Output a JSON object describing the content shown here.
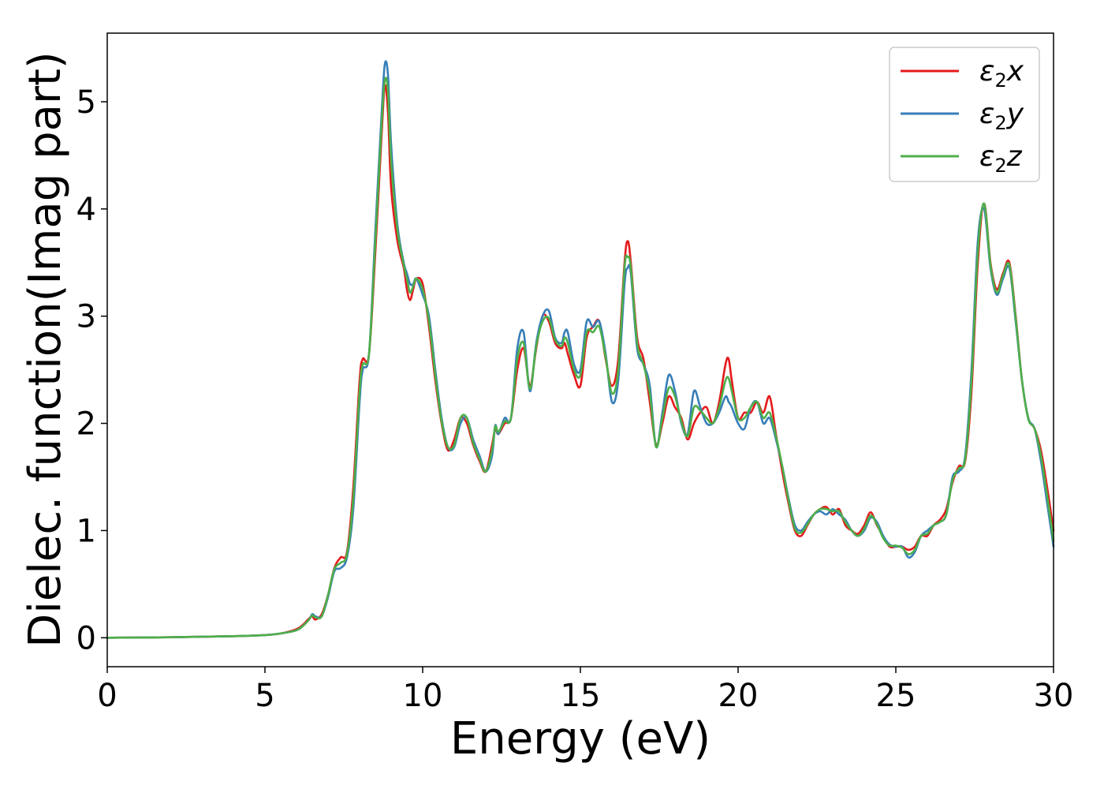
{
  "chart_data": {
    "type": "line",
    "xlabel": "Energy (eV)",
    "ylabel": "Dielec. function(Imag part)",
    "xlim": [
      0,
      30
    ],
    "ylim": [
      -0.27,
      5.64
    ],
    "xticks": [
      0,
      5,
      10,
      15,
      20,
      25,
      30
    ],
    "yticks": [
      0,
      1,
      2,
      3,
      4,
      5
    ],
    "grid": false,
    "legend_position": "top-right",
    "series": [
      {
        "name": "ε2x",
        "legend": {
          "symbol": "ε",
          "subscript": "2",
          "suffix": "x"
        },
        "color": "#e41a1c",
        "x": [
          0,
          2,
          4,
          5,
          5.5,
          6,
          6.2,
          6.4,
          6.5,
          6.6,
          6.8,
          7,
          7.2,
          7.4,
          7.6,
          7.8,
          8,
          8.1,
          8.3,
          8.5,
          8.7,
          8.8,
          8.9,
          9,
          9.2,
          9.4,
          9.5,
          9.6,
          9.7,
          9.8,
          10,
          10.2,
          10.4,
          10.6,
          10.8,
          11,
          11.2,
          11.4,
          11.6,
          11.8,
          12,
          12.2,
          12.3,
          12.4,
          12.6,
          12.8,
          13,
          13.2,
          13.4,
          13.6,
          13.8,
          14,
          14.2,
          14.4,
          14.5,
          14.6,
          14.8,
          15,
          15.2,
          15.4,
          15.6,
          15.8,
          16,
          16.2,
          16.4,
          16.5,
          16.6,
          16.8,
          17,
          17.2,
          17.4,
          17.6,
          17.8,
          18,
          18.2,
          18.4,
          18.6,
          18.8,
          19,
          19.2,
          19.4,
          19.6,
          19.7,
          19.8,
          20,
          20.2,
          20.4,
          20.6,
          20.8,
          21,
          21.2,
          21.4,
          21.6,
          21.8,
          22,
          22.2,
          22.4,
          22.6,
          22.8,
          23,
          23.2,
          23.4,
          23.6,
          23.8,
          24,
          24.2,
          24.4,
          24.6,
          24.8,
          25,
          25.2,
          25.4,
          25.6,
          25.8,
          26,
          26.2,
          26.4,
          26.6,
          26.8,
          27,
          27.2,
          27.4,
          27.6,
          27.8,
          28,
          28.2,
          28.4,
          28.6,
          28.8,
          29,
          29.2,
          29.4,
          29.6,
          29.8,
          30
        ],
        "y": [
          0,
          0.005,
          0.015,
          0.025,
          0.04,
          0.08,
          0.12,
          0.18,
          0.2,
          0.17,
          0.22,
          0.4,
          0.65,
          0.75,
          0.8,
          1.4,
          2.4,
          2.6,
          2.65,
          3.6,
          4.7,
          5.15,
          4.9,
          4.2,
          3.7,
          3.45,
          3.25,
          3.15,
          3.25,
          3.35,
          3.3,
          2.9,
          2.4,
          2.0,
          1.75,
          1.85,
          2.05,
          2.0,
          1.8,
          1.65,
          1.55,
          1.8,
          1.95,
          1.9,
          2.0,
          2.05,
          2.5,
          2.7,
          2.35,
          2.7,
          3.0,
          2.95,
          2.75,
          2.7,
          2.75,
          2.65,
          2.45,
          2.35,
          2.8,
          2.9,
          2.95,
          2.6,
          2.35,
          2.6,
          3.5,
          3.7,
          3.5,
          2.8,
          2.6,
          2.2,
          1.8,
          2.0,
          2.25,
          2.15,
          2.05,
          1.85,
          2.0,
          2.1,
          2.15,
          2.0,
          2.2,
          2.55,
          2.6,
          2.4,
          2.05,
          2.1,
          2.1,
          2.2,
          2.1,
          2.25,
          1.9,
          1.55,
          1.25,
          1.0,
          0.95,
          1.05,
          1.15,
          1.2,
          1.22,
          1.15,
          1.2,
          1.05,
          1.0,
          0.97,
          1.05,
          1.17,
          1.05,
          0.95,
          0.85,
          0.85,
          0.85,
          0.82,
          0.85,
          0.95,
          0.95,
          1.05,
          1.1,
          1.2,
          1.45,
          1.6,
          1.65,
          2.3,
          3.5,
          4.05,
          3.5,
          3.25,
          3.4,
          3.5,
          3.0,
          2.4,
          2.05,
          1.95,
          1.75,
          1.4,
          1.0
        ]
      },
      {
        "name": "ε2y",
        "legend": {
          "symbol": "ε",
          "subscript": "2",
          "suffix": "y"
        },
        "color": "#377eb8",
        "x": [
          0,
          2,
          4,
          5,
          5.5,
          6,
          6.2,
          6.4,
          6.5,
          6.6,
          6.8,
          7,
          7.2,
          7.4,
          7.6,
          7.8,
          8,
          8.1,
          8.3,
          8.5,
          8.7,
          8.8,
          8.9,
          9,
          9.2,
          9.4,
          9.5,
          9.6,
          9.7,
          9.8,
          10,
          10.2,
          10.4,
          10.6,
          10.8,
          11,
          11.2,
          11.4,
          11.6,
          11.8,
          12,
          12.2,
          12.3,
          12.4,
          12.6,
          12.8,
          13,
          13.2,
          13.4,
          13.6,
          13.8,
          14,
          14.2,
          14.4,
          14.5,
          14.6,
          14.8,
          15,
          15.2,
          15.4,
          15.6,
          15.8,
          16,
          16.2,
          16.4,
          16.5,
          16.6,
          16.8,
          17,
          17.2,
          17.4,
          17.6,
          17.8,
          18,
          18.2,
          18.4,
          18.6,
          18.8,
          19,
          19.2,
          19.4,
          19.6,
          19.7,
          19.8,
          20,
          20.2,
          20.4,
          20.6,
          20.8,
          21,
          21.2,
          21.4,
          21.6,
          21.8,
          22,
          22.2,
          22.4,
          22.6,
          22.8,
          23,
          23.2,
          23.4,
          23.6,
          23.8,
          24,
          24.2,
          24.4,
          24.6,
          24.8,
          25,
          25.2,
          25.4,
          25.6,
          25.8,
          26,
          26.2,
          26.4,
          26.6,
          26.8,
          27,
          27.2,
          27.4,
          27.6,
          27.8,
          28,
          28.2,
          28.4,
          28.6,
          28.8,
          29,
          29.2,
          29.4,
          29.6,
          29.8,
          30
        ],
        "y": [
          0,
          0.005,
          0.015,
          0.025,
          0.04,
          0.07,
          0.11,
          0.17,
          0.22,
          0.2,
          0.2,
          0.38,
          0.62,
          0.65,
          0.75,
          1.2,
          2.2,
          2.5,
          2.65,
          3.8,
          4.9,
          5.35,
          5.25,
          4.6,
          3.85,
          3.5,
          3.4,
          3.3,
          3.3,
          3.35,
          3.2,
          3.0,
          2.5,
          2.05,
          1.78,
          1.78,
          2.0,
          2.05,
          1.85,
          1.7,
          1.55,
          1.7,
          1.98,
          1.9,
          2.05,
          2.05,
          2.7,
          2.85,
          2.3,
          2.75,
          3.0,
          3.05,
          2.8,
          2.75,
          2.85,
          2.85,
          2.55,
          2.5,
          2.95,
          2.9,
          2.95,
          2.65,
          2.2,
          2.4,
          3.3,
          3.45,
          3.4,
          2.7,
          2.55,
          2.35,
          1.78,
          2.1,
          2.45,
          2.3,
          2.0,
          1.9,
          2.3,
          2.15,
          2.0,
          2.0,
          2.1,
          2.25,
          2.2,
          2.15,
          2.0,
          1.95,
          2.15,
          2.2,
          2.0,
          2.05,
          1.85,
          1.6,
          1.3,
          1.05,
          1.0,
          1.08,
          1.15,
          1.18,
          1.15,
          1.2,
          1.15,
          1.1,
          1.0,
          0.95,
          1.0,
          1.12,
          1.08,
          0.95,
          0.87,
          0.85,
          0.85,
          0.75,
          0.8,
          0.95,
          1.0,
          1.05,
          1.08,
          1.15,
          1.5,
          1.55,
          1.7,
          2.5,
          3.7,
          4.0,
          3.45,
          3.2,
          3.35,
          3.45,
          2.95,
          2.4,
          2.05,
          1.95,
          1.65,
          1.25,
          0.85
        ]
      },
      {
        "name": "ε2z",
        "legend": {
          "symbol": "ε",
          "subscript": "2",
          "suffix": "z"
        },
        "color": "#4daf4a",
        "x": [
          0,
          2,
          4,
          5,
          5.5,
          6,
          6.2,
          6.4,
          6.5,
          6.6,
          6.8,
          7,
          7.2,
          7.4,
          7.6,
          7.8,
          8,
          8.1,
          8.3,
          8.5,
          8.7,
          8.8,
          8.9,
          9,
          9.2,
          9.4,
          9.5,
          9.6,
          9.7,
          9.8,
          10,
          10.2,
          10.4,
          10.6,
          10.8,
          11,
          11.2,
          11.4,
          11.6,
          11.8,
          12,
          12.2,
          12.3,
          12.4,
          12.6,
          12.8,
          13,
          13.2,
          13.4,
          13.6,
          13.8,
          14,
          14.2,
          14.4,
          14.5,
          14.6,
          14.8,
          15,
          15.2,
          15.4,
          15.6,
          15.8,
          16,
          16.2,
          16.4,
          16.5,
          16.6,
          16.8,
          17,
          17.2,
          17.4,
          17.6,
          17.8,
          18,
          18.2,
          18.4,
          18.6,
          18.8,
          19,
          19.2,
          19.4,
          19.6,
          19.7,
          19.8,
          20,
          20.2,
          20.4,
          20.6,
          20.8,
          21,
          21.2,
          21.4,
          21.6,
          21.8,
          22,
          22.2,
          22.4,
          22.6,
          22.8,
          23,
          23.2,
          23.4,
          23.6,
          23.8,
          24,
          24.2,
          24.4,
          24.6,
          24.8,
          25,
          25.2,
          25.4,
          25.6,
          25.8,
          26,
          26.2,
          26.4,
          26.6,
          26.8,
          27,
          27.2,
          27.4,
          27.6,
          27.8,
          28,
          28.2,
          28.4,
          28.6,
          28.8,
          29,
          29.2,
          29.4,
          29.6,
          29.8,
          30
        ],
        "y": [
          0,
          0.005,
          0.015,
          0.025,
          0.04,
          0.07,
          0.11,
          0.17,
          0.21,
          0.19,
          0.2,
          0.4,
          0.64,
          0.7,
          0.78,
          1.3,
          2.3,
          2.55,
          2.65,
          3.7,
          4.8,
          5.2,
          5.1,
          4.45,
          3.8,
          3.48,
          3.35,
          3.22,
          3.28,
          3.35,
          3.25,
          2.95,
          2.45,
          2.02,
          1.78,
          1.8,
          2.05,
          2.05,
          1.82,
          1.67,
          1.55,
          1.75,
          1.97,
          1.92,
          2.02,
          2.05,
          2.6,
          2.75,
          2.32,
          2.72,
          2.95,
          2.98,
          2.78,
          2.72,
          2.8,
          2.75,
          2.5,
          2.45,
          2.85,
          2.85,
          2.9,
          2.62,
          2.28,
          2.5,
          3.45,
          3.55,
          3.45,
          2.75,
          2.55,
          2.28,
          1.78,
          2.05,
          2.33,
          2.25,
          2.02,
          1.88,
          2.15,
          2.12,
          2.05,
          2.0,
          2.15,
          2.4,
          2.42,
          2.3,
          2.05,
          2.05,
          2.15,
          2.2,
          2.05,
          2.1,
          1.88,
          1.6,
          1.28,
          1.02,
          0.98,
          1.06,
          1.15,
          1.2,
          1.2,
          1.18,
          1.18,
          1.08,
          1.0,
          0.95,
          1.02,
          1.14,
          1.06,
          0.93,
          0.86,
          0.86,
          0.84,
          0.78,
          0.82,
          0.95,
          0.97,
          1.05,
          1.08,
          1.15,
          1.47,
          1.58,
          1.67,
          2.4,
          3.6,
          4.05,
          3.48,
          3.22,
          3.38,
          3.48,
          2.98,
          2.4,
          2.04,
          1.95,
          1.7,
          1.32,
          0.9
        ]
      }
    ]
  }
}
